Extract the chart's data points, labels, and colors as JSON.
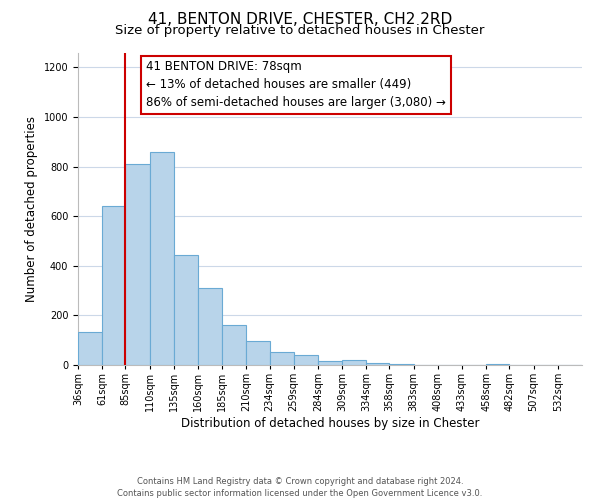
{
  "title": "41, BENTON DRIVE, CHESTER, CH2 2RD",
  "subtitle": "Size of property relative to detached houses in Chester",
  "xlabel": "Distribution of detached houses by size in Chester",
  "ylabel": "Number of detached properties",
  "bin_labels": [
    "36sqm",
    "61sqm",
    "85sqm",
    "110sqm",
    "135sqm",
    "160sqm",
    "185sqm",
    "210sqm",
    "234sqm",
    "259sqm",
    "284sqm",
    "309sqm",
    "334sqm",
    "358sqm",
    "383sqm",
    "408sqm",
    "433sqm",
    "458sqm",
    "482sqm",
    "507sqm",
    "532sqm"
  ],
  "bar_values": [
    135,
    640,
    810,
    860,
    445,
    310,
    160,
    95,
    52,
    42,
    15,
    20,
    10,
    5,
    2,
    0,
    0,
    5,
    0,
    0,
    2
  ],
  "bar_color": "#b8d4ea",
  "bar_edge_color": "#6aaad4",
  "bin_edges": [
    36,
    61,
    85,
    110,
    135,
    160,
    185,
    210,
    234,
    259,
    284,
    309,
    334,
    358,
    383,
    408,
    433,
    458,
    482,
    507,
    532,
    557
  ],
  "vline_x": 85,
  "vline_color": "#cc0000",
  "annotation_line1": "41 BENTON DRIVE: 78sqm",
  "annotation_line2": "← 13% of detached houses are smaller (449)",
  "annotation_line3": "86% of semi-detached houses are larger (3,080) →",
  "annotation_box_edge": "#cc0000",
  "ylim": [
    0,
    1260
  ],
  "yticks": [
    0,
    200,
    400,
    600,
    800,
    1000,
    1200
  ],
  "footer_line1": "Contains HM Land Registry data © Crown copyright and database right 2024.",
  "footer_line2": "Contains public sector information licensed under the Open Government Licence v3.0.",
  "bg_color": "#ffffff",
  "grid_color": "#ccd8e8",
  "title_fontsize": 11,
  "subtitle_fontsize": 9.5,
  "annotation_fontsize": 8.5,
  "ylabel_fontsize": 8.5,
  "xlabel_fontsize": 8.5,
  "tick_fontsize": 7,
  "footer_fontsize": 6
}
